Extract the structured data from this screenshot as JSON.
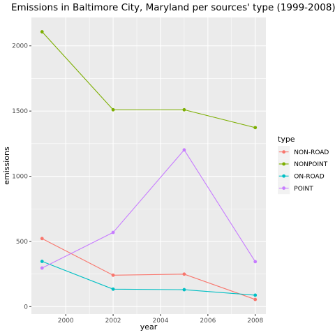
{
  "chart_data": {
    "type": "line",
    "title": "Emissions in Baltimore City, Maryland per sources' type (1999-2008)",
    "xlabel": "year",
    "ylabel": "emissions",
    "x": [
      1999,
      2002,
      2005,
      2008
    ],
    "xlim": [
      1998.55,
      2008.45
    ],
    "ylim": [
      -57,
      2218
    ],
    "xticks": [
      2000,
      2002,
      2004,
      2006,
      2008
    ],
    "yticks": [
      0,
      500,
      1000,
      1500,
      2000
    ],
    "grid": true,
    "legend": {
      "title": "type",
      "position": "right"
    },
    "series": [
      {
        "name": "NON-ROAD",
        "color": "#F8766D",
        "values": [
          522,
          241,
          249,
          55
        ]
      },
      {
        "name": "NONPOINT",
        "color": "#7CAE00",
        "values": [
          2108,
          1510,
          1510,
          1373
        ]
      },
      {
        "name": "ON-ROAD",
        "color": "#00BFC4",
        "values": [
          347,
          134,
          130,
          88
        ]
      },
      {
        "name": "POINT",
        "color": "#C77CFF",
        "values": [
          296,
          569,
          1202,
          345
        ]
      }
    ]
  }
}
